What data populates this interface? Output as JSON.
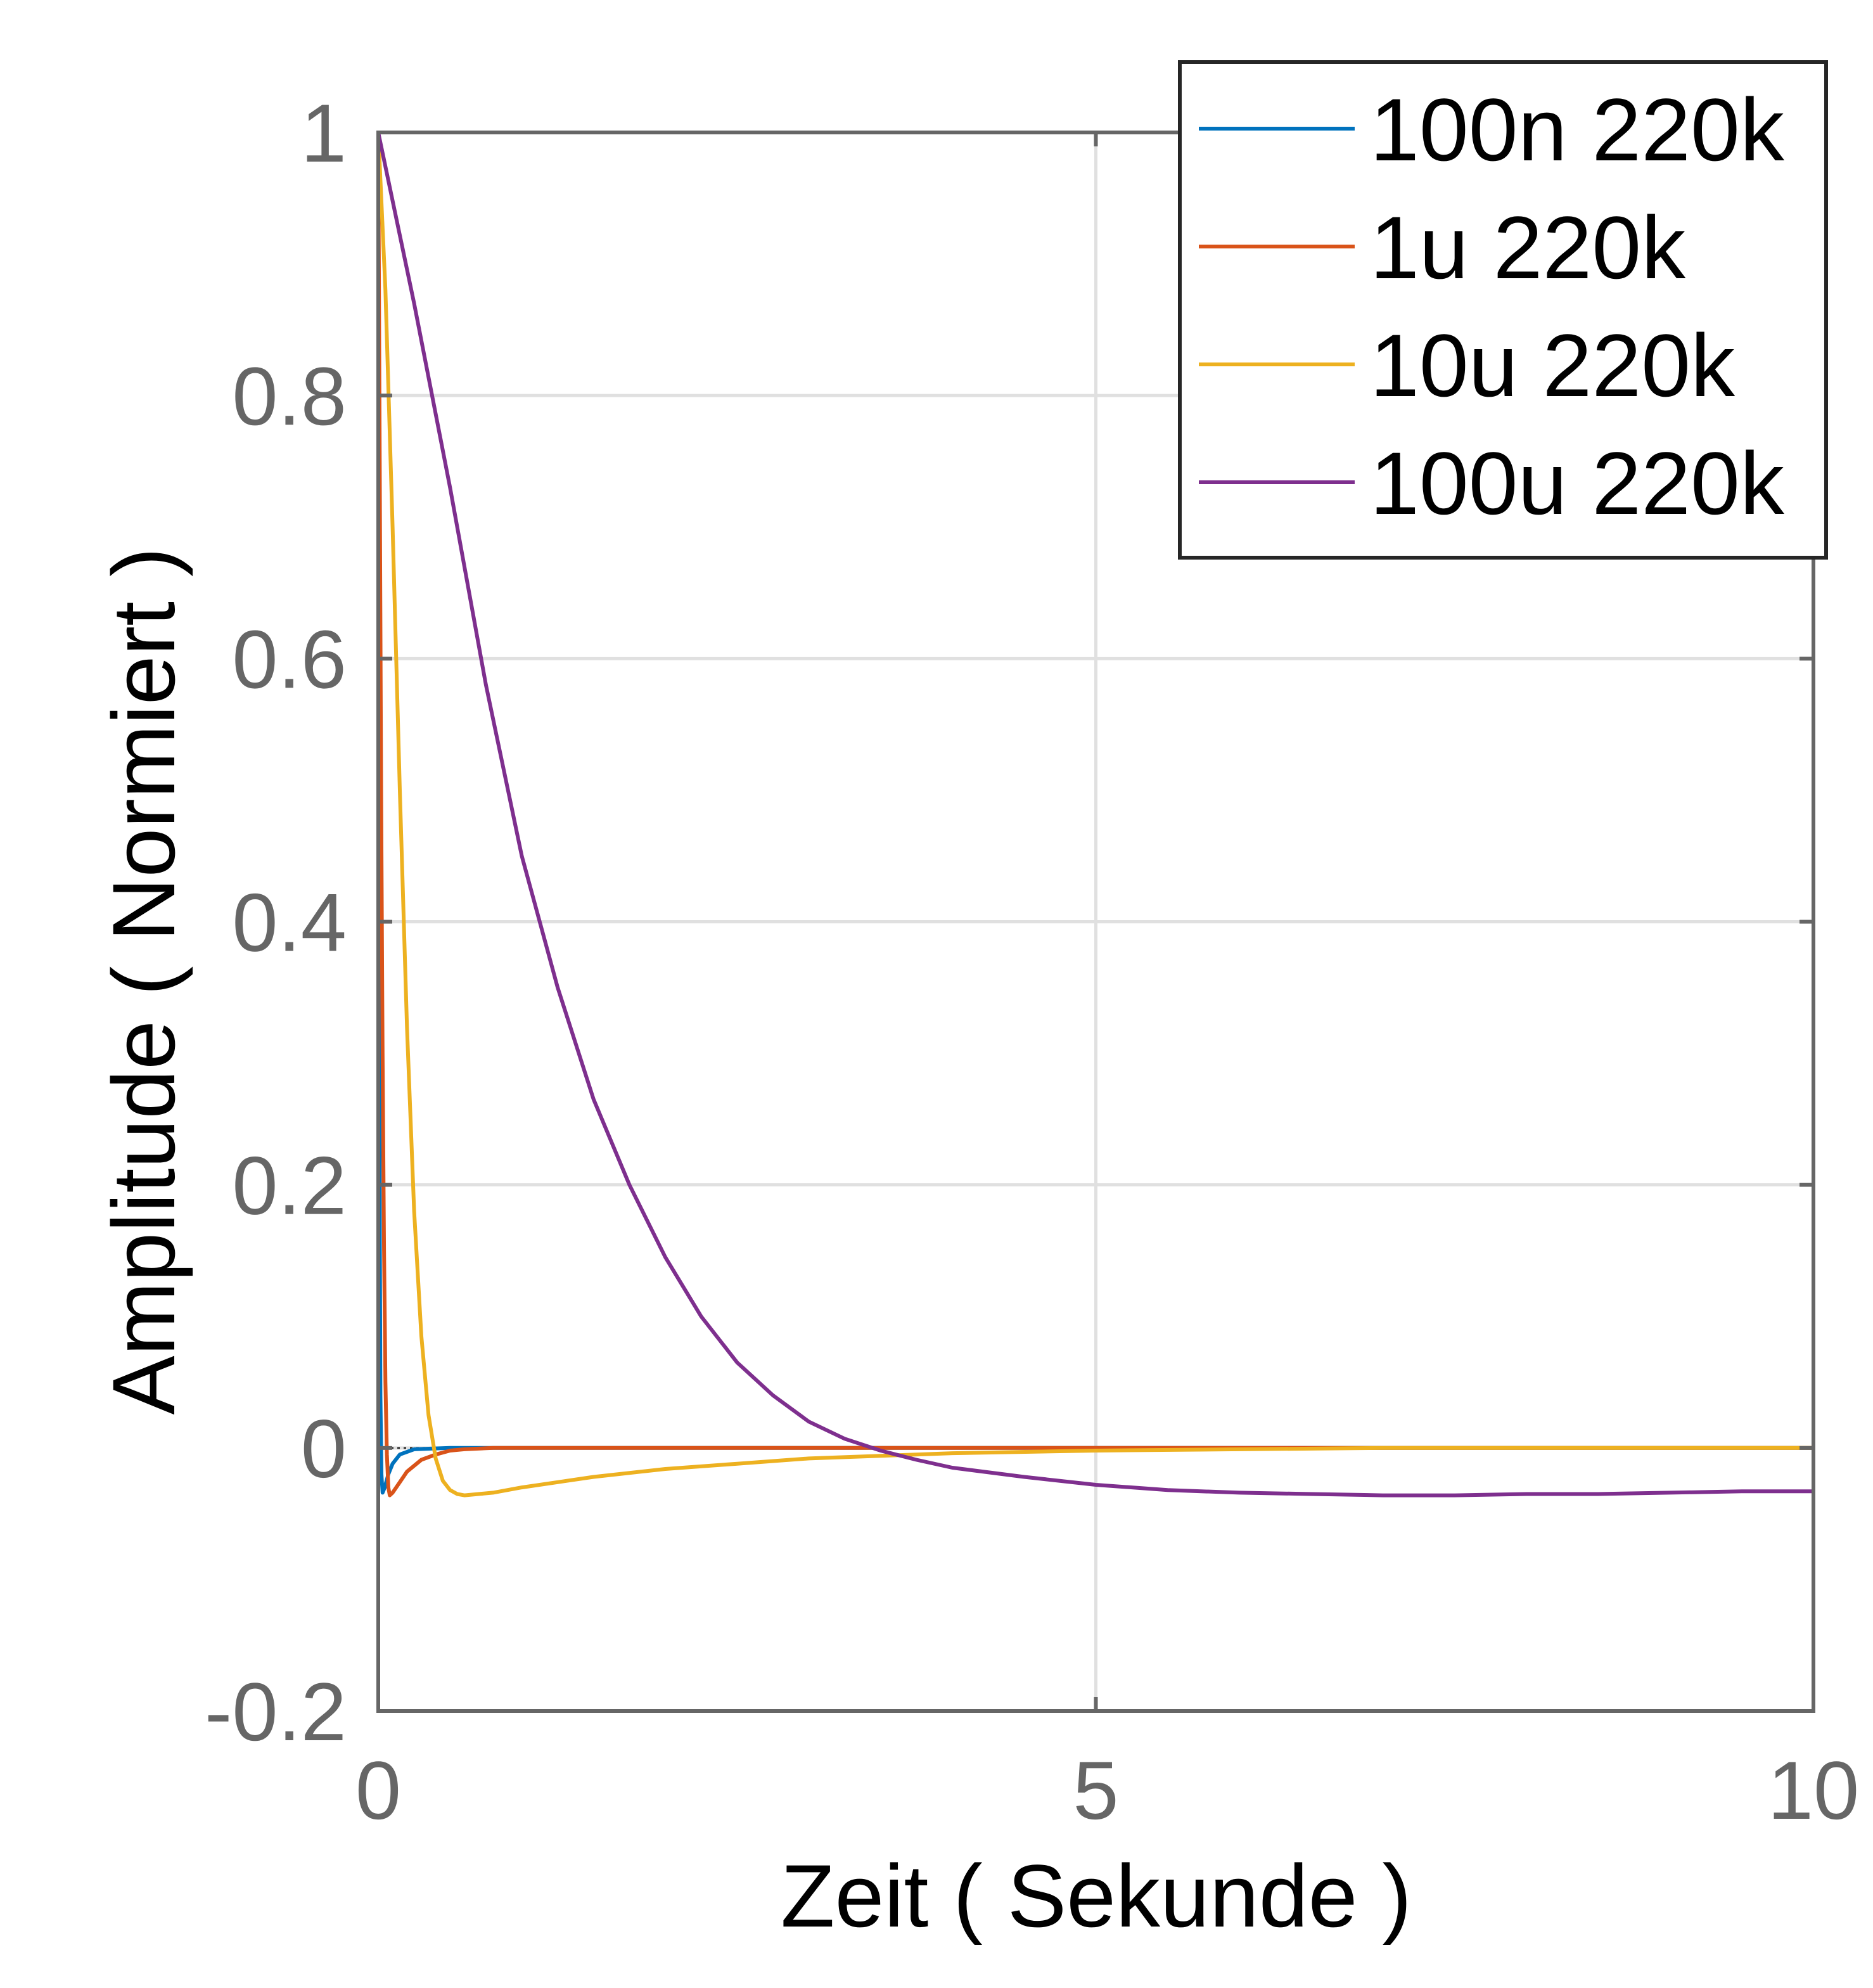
{
  "chart_data": {
    "type": "line",
    "title": "",
    "xlabel": "Zeit ( Sekunde )",
    "ylabel": "Amplitude ( Normiert )",
    "xlim": [
      0,
      10
    ],
    "ylim": [
      -0.2,
      1
    ],
    "x_ticks": [
      0,
      5,
      10
    ],
    "x_tick_labels": [
      "0",
      "5",
      "10"
    ],
    "y_ticks": [
      -0.2,
      0,
      0.2,
      0.4,
      0.6,
      0.8,
      1
    ],
    "y_tick_labels": [
      "-0.2",
      "0",
      "0.2",
      "0.4",
      "0.6",
      "0.8",
      "1"
    ],
    "grid": true,
    "legend_position": "top-right",
    "colors": {
      "axes": "#666666",
      "grid": "#e0e0e0",
      "zero_line": "#333333"
    },
    "series": [
      {
        "name": "100n 220k",
        "color": "#0072BD",
        "x": [
          0,
          0.003,
          0.008,
          0.015,
          0.022,
          0.03,
          0.045,
          0.07,
          0.1,
          0.15,
          0.25,
          0.5,
          1,
          10
        ],
        "y": [
          1,
          0.6,
          0.25,
          0.04,
          -0.02,
          -0.034,
          -0.03,
          -0.02,
          -0.012,
          -0.005,
          -0.001,
          0,
          0,
          0
        ]
      },
      {
        "name": "1u 220k",
        "color": "#D95319",
        "x": [
          0,
          0.01,
          0.02,
          0.03,
          0.04,
          0.05,
          0.06,
          0.07,
          0.08,
          0.1,
          0.15,
          0.2,
          0.3,
          0.4,
          0.5,
          0.6,
          0.8,
          1,
          2,
          10
        ],
        "y": [
          1,
          0.75,
          0.5,
          0.3,
          0.15,
          0.05,
          -0.005,
          -0.03,
          -0.036,
          -0.034,
          -0.026,
          -0.018,
          -0.009,
          -0.005,
          -0.002,
          -0.001,
          0,
          0,
          0,
          0
        ]
      },
      {
        "name": "10u 220k",
        "color": "#EDB120",
        "x": [
          0,
          0.05,
          0.1,
          0.15,
          0.2,
          0.25,
          0.3,
          0.35,
          0.4,
          0.45,
          0.5,
          0.55,
          0.6,
          0.7,
          0.8,
          1,
          1.5,
          2,
          2.5,
          3,
          3.5,
          4,
          5,
          6,
          7,
          8,
          10
        ],
        "y": [
          1,
          0.88,
          0.7,
          0.5,
          0.32,
          0.18,
          0.085,
          0.025,
          -0.008,
          -0.025,
          -0.032,
          -0.035,
          -0.036,
          -0.035,
          -0.034,
          -0.03,
          -0.022,
          -0.016,
          -0.012,
          -0.008,
          -0.006,
          -0.004,
          -0.002,
          -0.001,
          0,
          0,
          0
        ]
      },
      {
        "name": "100u 220k",
        "color": "#7E2F8E",
        "x": [
          0,
          0.25,
          0.5,
          0.75,
          1,
          1.25,
          1.5,
          1.75,
          2,
          2.25,
          2.5,
          2.75,
          3,
          3.25,
          3.5,
          3.75,
          4,
          4.5,
          5,
          5.5,
          6,
          6.5,
          7,
          7.5,
          8,
          8.5,
          9,
          9.5,
          10
        ],
        "y": [
          1,
          0.87,
          0.73,
          0.58,
          0.45,
          0.35,
          0.265,
          0.2,
          0.145,
          0.1,
          0.065,
          0.04,
          0.02,
          0.007,
          -0.002,
          -0.009,
          -0.015,
          -0.022,
          -0.028,
          -0.032,
          -0.034,
          -0.035,
          -0.036,
          -0.036,
          -0.035,
          -0.035,
          -0.034,
          -0.033,
          -0.033
        ]
      }
    ]
  }
}
